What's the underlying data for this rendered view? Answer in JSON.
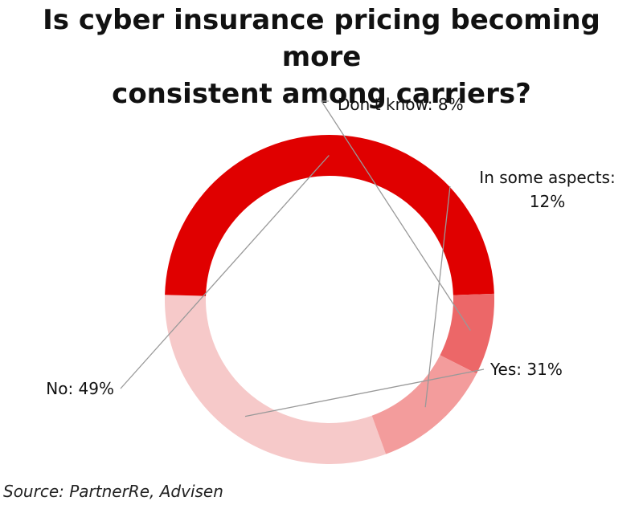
{
  "chart_data": {
    "type": "pie",
    "variant": "donut",
    "title_lines": [
      "Is cyber insurance pricing becoming more",
      "consistent among carriers?"
    ],
    "start_angle_deg": 160,
    "direction": "clockwise",
    "slices": [
      {
        "name": "Yes",
        "value": 31,
        "label": "Yes: 31%",
        "color": "#f6c9c9"
      },
      {
        "name": "No",
        "value": 49,
        "label": "No: 49%",
        "color": "#e00000"
      },
      {
        "name": "Don't know",
        "value": 8,
        "label": "Don't know: 8%",
        "color": "#ec6768"
      },
      {
        "name": "In some aspects",
        "value": 12,
        "label_lines": [
          "In some aspects:",
          "12%"
        ],
        "color": "#f39c9c"
      }
    ],
    "leader_color": "#999999"
  },
  "source": "Source: PartnerRe, Advisen"
}
